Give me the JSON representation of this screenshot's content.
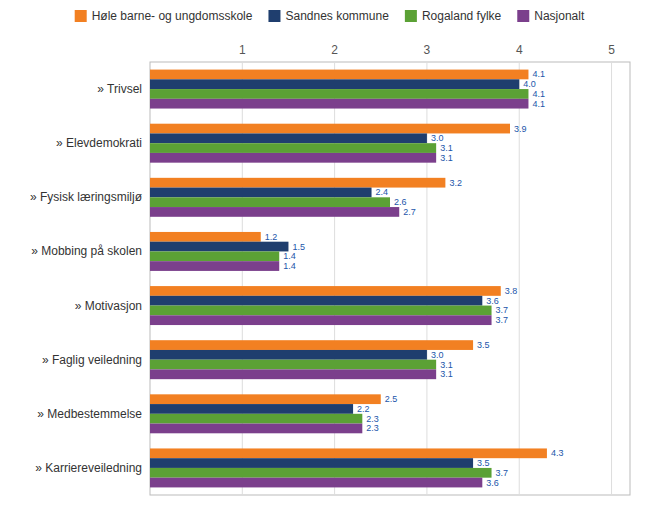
{
  "chart_data": {
    "type": "bar",
    "orientation": "horizontal",
    "categories": [
      "» Trivsel",
      "» Elevdemokrati",
      "» Fysisk læringsmiljø",
      "» Mobbing på skolen",
      "» Motivasjon",
      "» Faglig veiledning",
      "» Medbestemmelse",
      "» Karriereveiledning"
    ],
    "series": [
      {
        "name": "Høle barne- og ungdomsskole",
        "color": "#F28022",
        "values": [
          4.1,
          3.9,
          3.2,
          1.2,
          3.8,
          3.5,
          2.5,
          4.3
        ],
        "value_labels": [
          "4.1",
          "3.9",
          "3.2",
          "1.2",
          "3.8",
          "3.5",
          "2.5",
          "4.3"
        ]
      },
      {
        "name": "Sandnes kommune",
        "color": "#1F3E6E",
        "values": [
          4.0,
          3.0,
          2.4,
          1.5,
          3.6,
          3.0,
          2.2,
          3.5
        ],
        "value_labels": [
          "4.0",
          "3.0",
          "2.4",
          "1.5",
          "3.6",
          "3.0",
          "2.2",
          "3.5"
        ]
      },
      {
        "name": "Rogaland fylke",
        "color": "#5BA135",
        "values": [
          4.1,
          3.1,
          2.6,
          1.4,
          3.7,
          3.1,
          2.3,
          3.7
        ],
        "value_labels": [
          "4.1",
          "3.1",
          "2.6",
          "1.4",
          "3.7",
          "3.1",
          "2.3",
          "3.7"
        ]
      },
      {
        "name": "Nasjonalt",
        "color": "#7B3F8C",
        "values": [
          4.1,
          3.1,
          2.7,
          1.4,
          3.7,
          3.1,
          2.3,
          3.6
        ],
        "value_labels": [
          "4.1",
          "3.1",
          "2.7",
          "1.4",
          "3.7",
          "3.1",
          "2.3",
          "3.6"
        ]
      }
    ],
    "xlim": [
      0,
      5.2
    ],
    "xticks": [
      1,
      2,
      3,
      4,
      5
    ],
    "grid": true,
    "data_labels": true,
    "legend": "top"
  }
}
